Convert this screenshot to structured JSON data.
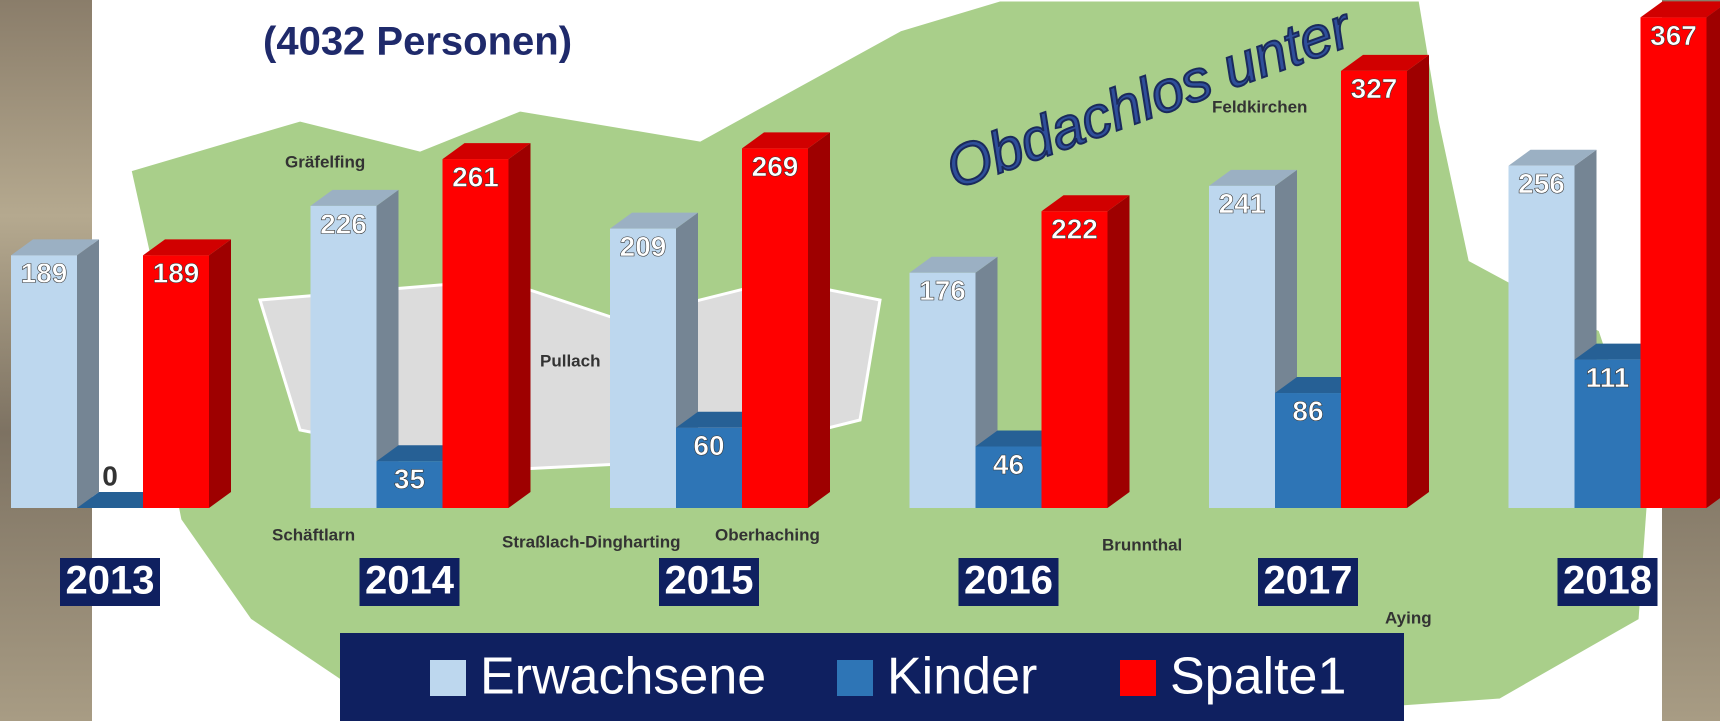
{
  "chart_data": {
    "type": "bar3d",
    "title": "(4032 Personen)",
    "annotation": "Obdachlos unter",
    "map_labels": [
      "Gräfelfing",
      "Pullach",
      "Schäftlarn",
      "Straßlach-Dingharting",
      "Oberhaching",
      "Brunnthal",
      "Aying",
      "Feldkirchen"
    ],
    "categories": [
      "2013",
      "2014",
      "2015",
      "2016",
      "2017",
      "2018"
    ],
    "series": [
      {
        "name": "Erwachsene",
        "color": "#bdd7ee",
        "values": [
          189,
          226,
          209,
          176,
          241,
          256
        ]
      },
      {
        "name": "Kinder",
        "color": "#2e75b6",
        "values": [
          0,
          35,
          60,
          46,
          86,
          111
        ]
      },
      {
        "name": "Spalte1",
        "color": "#ff0000",
        "values": [
          189,
          261,
          269,
          222,
          327,
          367
        ]
      }
    ],
    "ylim": [
      0,
      380
    ],
    "legend": "bottom"
  }
}
